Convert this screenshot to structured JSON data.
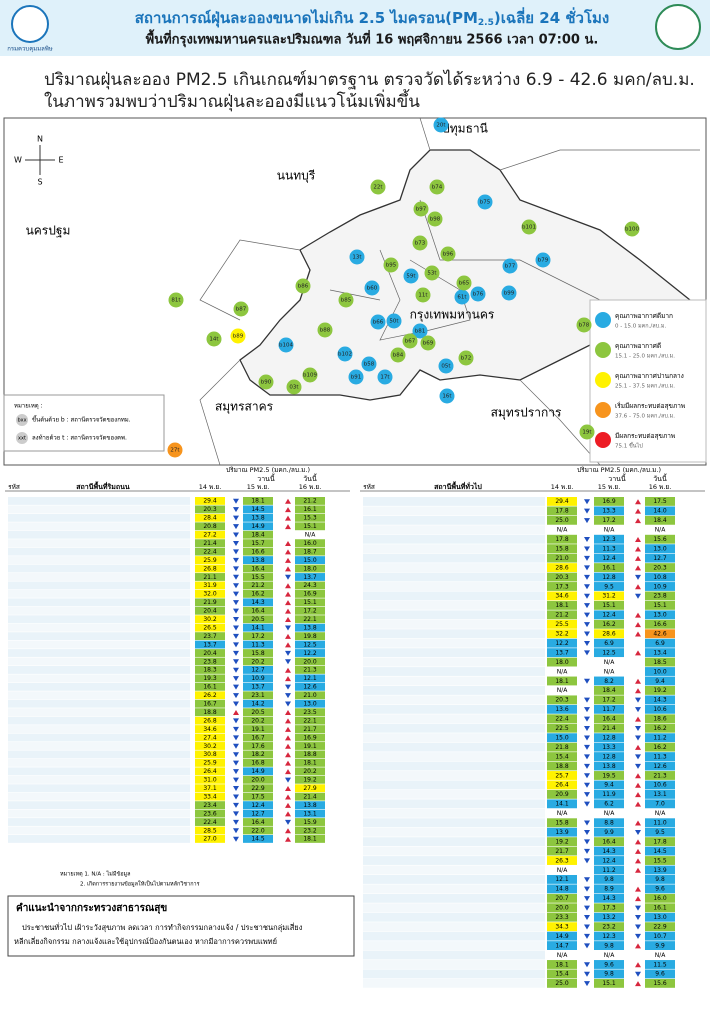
{
  "header": {
    "title_a": "สถานการณ์ฝุ่นละอองขนาดไม่เกิน 2.5 ไมครอน(PM",
    "title_sub": "2.5",
    "title_b": ")เฉลี่ย 24 ชั่วโมง",
    "subtitle": "พื้นที่กรุงเทพมหานครและปริมณฑล วันที่ 16 พฤศจิกายน 2566 เวลา 07:00 น.",
    "agency": "กรมควบคุมมลพิษ"
  },
  "summary": [
    "ปริมาณฝุ่นละออง PM2.5 เกินเกณฑ์มาตรฐาน ตรวจวัดได้ระหว่าง 6.9 - 42.6 มคก/ลบ.ม.",
    "ในภาพรวมพบว่าปริมาณฝุ่นละอองมีแนวโน้มเพิ่มขึ้น"
  ],
  "map": {
    "provinces": [
      "ปทุมธานี",
      "นนทบุรี",
      "นครปฐม",
      "กรุงเทพมหานคร",
      "สมุทรสาคร",
      "สมุทรปราการ"
    ],
    "compass": [
      "N",
      "S",
      "E",
      "W"
    ],
    "note_title": "หมายเหตุ :",
    "notes": [
      {
        "tag": "bxx",
        "text": "ขึ้นต้นด้วย b : สถานีตรวจวัดของกทม."
      },
      {
        "tag": "xxt",
        "text": "ลงท้ายด้วย t : สถานีตรวจวัดของคพ."
      }
    ],
    "levels": [
      {
        "label": "คุณภาพอากาศดีมาก",
        "range": "0 - 15.0 มคก./ลบ.ม.",
        "max": 15.0,
        "color": "#29abe2"
      },
      {
        "label": "คุณภาพอากาศดี",
        "range": "15.1 - 25.0 มคก./ลบ.ม.",
        "max": 25.0,
        "color": "#8dc63f"
      },
      {
        "label": "คุณภาพอากาศปานกลาง",
        "range": "25.1 - 37.5 มคก./ลบ.ม.",
        "max": 37.5,
        "color": "#fff200"
      },
      {
        "label": "เริ่มมีผลกระทบต่อสุขภาพ",
        "range": "37.6 - 75.0 มคก./ลบ.ม.",
        "max": 75.0,
        "color": "#f7941d"
      },
      {
        "label": "มีผลกระทบต่อสุขภาพ",
        "range": "75.1 ขึ้นไป",
        "color": "#ed1c24"
      }
    ],
    "stations": [
      {
        "label": "20t",
        "color": "#29abe2"
      },
      {
        "label": "22t",
        "color": "#8dc63f"
      },
      {
        "label": "b74",
        "color": "#8dc63f"
      },
      {
        "label": "b75",
        "color": "#29abe2"
      },
      {
        "label": "b97",
        "color": "#8dc63f"
      },
      {
        "label": "b98",
        "color": "#8dc63f"
      },
      {
        "label": "b101",
        "color": "#8dc63f"
      },
      {
        "label": "b100",
        "color": "#8dc63f"
      },
      {
        "label": "13t",
        "color": "#29abe2"
      },
      {
        "label": "b73",
        "color": "#8dc63f"
      },
      {
        "label": "b96",
        "color": "#8dc63f"
      },
      {
        "label": "b77",
        "color": "#29abe2"
      },
      {
        "label": "b79",
        "color": "#29abe2"
      },
      {
        "label": "b95",
        "color": "#8dc63f"
      },
      {
        "label": "59t",
        "color": "#29abe2"
      },
      {
        "label": "b86",
        "color": "#8dc63f"
      },
      {
        "label": "b87",
        "color": "#8dc63f"
      },
      {
        "label": "81t",
        "color": "#8dc63f"
      },
      {
        "label": "14t",
        "color": "#8dc63f"
      },
      {
        "label": "b89",
        "color": "#fff200"
      },
      {
        "label": "b104",
        "color": "#29abe2"
      },
      {
        "label": "b78",
        "color": "#8dc63f"
      },
      {
        "label": "b85",
        "color": "#8dc63f"
      },
      {
        "label": "b60",
        "color": "#29abe2"
      },
      {
        "label": "b66",
        "color": "#29abe2"
      },
      {
        "label": "50t",
        "color": "#29abe2"
      },
      {
        "label": "b81",
        "color": "#29abe2"
      },
      {
        "label": "b67",
        "color": "#8dc63f"
      },
      {
        "label": "b69",
        "color": "#8dc63f"
      },
      {
        "label": "b72",
        "color": "#8dc63f"
      },
      {
        "label": "05t",
        "color": "#29abe2"
      },
      {
        "label": "b84",
        "color": "#8dc63f"
      },
      {
        "label": "b91",
        "color": "#29abe2"
      },
      {
        "label": "17t",
        "color": "#29abe2"
      },
      {
        "label": "b102",
        "color": "#29abe2"
      },
      {
        "label": "b58",
        "color": "#29abe2"
      },
      {
        "label": "b109",
        "color": "#8dc63f"
      },
      {
        "label": "03t",
        "color": "#8dc63f"
      },
      {
        "label": "b90",
        "color": "#8dc63f"
      },
      {
        "label": "16t",
        "color": "#29abe2"
      },
      {
        "label": "19t",
        "color": "#8dc63f"
      },
      {
        "label": "27t",
        "color": "#f7941d"
      },
      {
        "label": "b76",
        "color": "#29abe2"
      },
      {
        "label": "b99",
        "color": "#29abe2"
      },
      {
        "label": "53t",
        "color": "#8dc63f"
      },
      {
        "label": "11t",
        "color": "#8dc63f"
      },
      {
        "label": "61t",
        "color": "#29abe2"
      },
      {
        "label": "b65",
        "color": "#8dc63f"
      },
      {
        "label": "b88",
        "color": "#8dc63f"
      }
    ]
  },
  "tables": {
    "unit": "ปริมาณ PM2.5 (มคก./ลบ.ม.)",
    "yesterday": "วานนี้",
    "today": "วันนี้",
    "code": "รหัส",
    "dates": [
      "14 พ.ย.",
      "15 พ.ย.",
      "16 พ.ย."
    ],
    "roadside": {
      "title": "สถานีพื้นที่ริมถนน",
      "rows": [
        [
          "29.4",
          "18.1",
          "21.2"
        ],
        [
          "20.3",
          "14.5",
          "16.1"
        ],
        [
          "28.4",
          "13.8",
          "15.3"
        ],
        [
          "20.8",
          "14.9",
          "15.1"
        ],
        [
          "27.2",
          "18.4",
          "N/A"
        ],
        [
          "21.4",
          "15.7",
          "16.0"
        ],
        [
          "22.4",
          "16.6",
          "18.7"
        ],
        [
          "25.9",
          "13.8",
          "15.0"
        ],
        [
          "26.8",
          "16.4",
          "18.0"
        ],
        [
          "21.1",
          "15.5",
          "13.7"
        ],
        [
          "31.9",
          "21.2",
          "24.3"
        ],
        [
          "32.0",
          "16.2",
          "16.9"
        ],
        [
          "21.9",
          "14.3",
          "15.1"
        ],
        [
          "20.4",
          "16.4",
          "17.2"
        ],
        [
          "30.2",
          "20.5",
          "22.1"
        ],
        [
          "26.5",
          "14.1",
          "13.8"
        ],
        [
          "23.7",
          "17.2",
          "19.8"
        ],
        [
          "13.7",
          "11.3",
          "12.5"
        ],
        [
          "20.4",
          "15.8",
          "12.2"
        ],
        [
          "23.8",
          "20.2",
          "20.0"
        ],
        [
          "18.3",
          "12.7",
          "21.3"
        ],
        [
          "19.3",
          "10.9",
          "12.1"
        ],
        [
          "16.1",
          "13.7",
          "12.6"
        ],
        [
          "26.2",
          "23.1",
          "21.0"
        ],
        [
          "16.7",
          "14.2",
          "13.0"
        ],
        [
          "18.8",
          "20.5",
          "23.5"
        ],
        [
          "26.8",
          "20.2",
          "22.1"
        ],
        [
          "34.6",
          "19.1",
          "21.7"
        ],
        [
          "27.4",
          "16.7",
          "16.9"
        ],
        [
          "30.2",
          "17.6",
          "19.1"
        ],
        [
          "30.8",
          "18.2",
          "18.8"
        ],
        [
          "25.9",
          "16.8",
          "18.1"
        ],
        [
          "26.4",
          "14.9",
          "20.2"
        ],
        [
          "31.0",
          "20.0",
          "19.2"
        ],
        [
          "37.1",
          "22.9",
          "27.9"
        ],
        [
          "33.4",
          "17.5",
          "21.4"
        ],
        [
          "23.4",
          "12.4",
          "13.8"
        ],
        [
          "23.6",
          "12.7",
          "13.1"
        ],
        [
          "22.4",
          "16.4",
          "15.9"
        ],
        [
          "28.5",
          "22.0",
          "23.2"
        ],
        [
          "27.0",
          "14.5",
          "18.1"
        ]
      ]
    },
    "general": {
      "title": "สถานีพื้นที่ทั่วไป",
      "rows": [
        [
          "29.4",
          "16.9",
          "17.5"
        ],
        [
          "17.8",
          "13.3",
          "14.0"
        ],
        [
          "25.0",
          "17.2",
          "18.4"
        ],
        [
          "N/A",
          "N/A",
          "N/A"
        ],
        [
          "17.8",
          "12.3",
          "15.6"
        ],
        [
          "15.8",
          "11.3",
          "13.0"
        ],
        [
          "21.0",
          "12.4",
          "12.7"
        ],
        [
          "28.6",
          "16.1",
          "20.3"
        ],
        [
          "20.3",
          "12.8",
          "10.8"
        ],
        [
          "17.3",
          "9.5",
          "10.9"
        ],
        [
          "34.6",
          "31.2",
          "23.8"
        ],
        [
          "18.1",
          "15.1",
          "15.1"
        ],
        [
          "21.2",
          "12.4",
          "13.0"
        ],
        [
          "25.5",
          "16.2",
          "16.6"
        ],
        [
          "32.2",
          "28.6",
          "42.6"
        ],
        [
          "12.2",
          "6.9",
          "6.9"
        ],
        [
          "13.7",
          "12.5",
          "13.4"
        ],
        [
          "18.0",
          "N/A",
          "18.5"
        ],
        [
          "N/A",
          "N/A",
          "10.0"
        ],
        [
          "18.1",
          "8.2",
          "9.4"
        ],
        [
          "N/A",
          "18.4",
          "19.2"
        ],
        [
          "20.3",
          "17.2",
          "14.3"
        ],
        [
          "13.6",
          "11.7",
          "10.6"
        ],
        [
          "22.4",
          "16.4",
          "18.6"
        ],
        [
          "22.5",
          "21.4",
          "16.2"
        ],
        [
          "15.0",
          "12.8",
          "11.2"
        ],
        [
          "21.8",
          "13.3",
          "16.2"
        ],
        [
          "15.4",
          "12.8",
          "11.3"
        ],
        [
          "18.8",
          "13.8",
          "12.6"
        ],
        [
          "25.7",
          "19.5",
          "21.3"
        ],
        [
          "26.4",
          "9.4",
          "10.6"
        ],
        [
          "20.9",
          "11.9",
          "13.1"
        ],
        [
          "14.1",
          "6.2",
          "7.0"
        ],
        [
          "N/A",
          "N/A",
          "N/A"
        ],
        [
          "15.8",
          "8.8",
          "11.0"
        ],
        [
          "13.9",
          "9.9",
          "9.5"
        ],
        [
          "19.2",
          "16.4",
          "17.8"
        ],
        [
          "21.7",
          "14.3",
          "14.5"
        ],
        [
          "26.3",
          "12.4",
          "15.5"
        ],
        [
          "N/A",
          "11.2",
          "13.9"
        ],
        [
          "12.1",
          "9.8",
          "9.8"
        ],
        [
          "14.8",
          "8.9",
          "9.6"
        ],
        [
          "20.7",
          "14.3",
          "16.0"
        ],
        [
          "20.0",
          "17.3",
          "16.1"
        ],
        [
          "23.3",
          "13.2",
          "13.0"
        ],
        [
          "34.3",
          "23.2",
          "22.9"
        ],
        [
          "14.9",
          "12.3",
          "10.7"
        ],
        [
          "14.7",
          "9.8",
          "9.9"
        ],
        [
          "N/A",
          "N/A",
          "N/A"
        ],
        [
          "18.1",
          "9.6",
          "11.5"
        ],
        [
          "15.4",
          "9.8",
          "9.6"
        ],
        [
          "25.0",
          "15.1",
          "15.6"
        ]
      ]
    },
    "notes": [
      "หมายเหตุ 1. N/A : ไม่มีข้อมูล",
      "2. เกิดการรายงานข้อมูลให้เป็นไปตามหลักวิชาการ"
    ]
  },
  "advice": {
    "title": "คำแนะนำจากกระทรวงสาธารณสุข",
    "lines": [
      "ประชาชนทั่วไป เฝ้าระวังสุขภาพ ลดเวลา การทำกิจกรรมกลางแจ้ง / ประชาชนกลุ่มเสี่ยง",
      "หลีกเลี่ยงกิจกรรม กลางแจ้งและใช้อุปกรณ์ป้องกันตนเอง หากมีอาการควรพบแพทย์"
    ]
  }
}
